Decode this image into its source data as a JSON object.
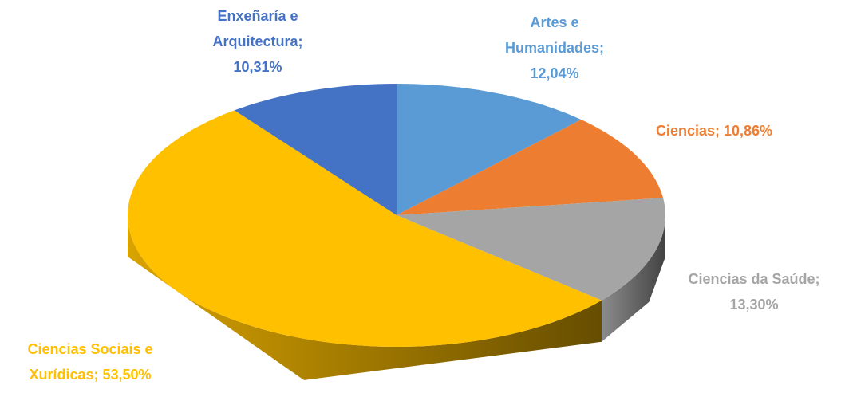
{
  "chart_data": {
    "type": "pie3d",
    "categories": [
      "Artes e Humanidades",
      "Ciencias",
      "Ciencias da Saúde",
      "Ciencias Sociais e Xurídicas",
      "Enxeñaría e Arquitectura"
    ],
    "values": [
      12.04,
      10.86,
      13.3,
      53.5,
      10.31
    ],
    "value_labels": [
      "12,04%",
      "10,86%",
      "13,30%",
      "53,50%",
      "10,31%"
    ],
    "label_separator": ";",
    "colors": [
      "#5b9bd5",
      "#ed7d31",
      "#a5a5a5",
      "#ffc000",
      "#4472c4"
    ]
  }
}
